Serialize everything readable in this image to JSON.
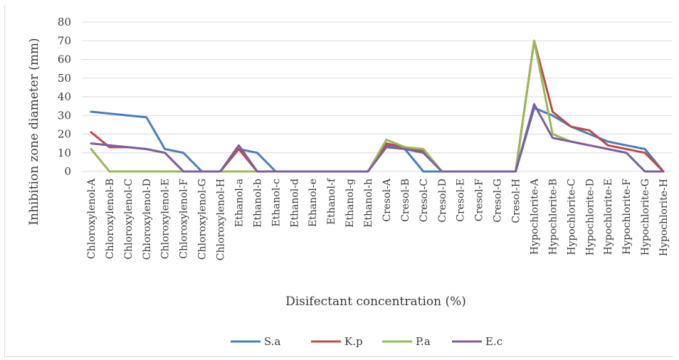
{
  "chart_data": {
    "type": "line",
    "xlabel": "Disifectant concentration (%)",
    "ylabel": "Inhibition zone diameter (mm)",
    "ylim": [
      0,
      80
    ],
    "yticks": [
      0,
      10,
      20,
      30,
      40,
      50,
      60,
      70,
      80
    ],
    "grid": true,
    "legend_position": "bottom",
    "categories": [
      "Chloroxylenol-A",
      "Chloroxylenol-B",
      "Chloroxylenol-C",
      "Chloroxylenol-D",
      "Chloroxylenol-E",
      "Chloroxylenol-F",
      "Chloroxylenol-G",
      "Chloroxylenol-H",
      "Ethanol-a",
      "Ethanol-b",
      "Ethanol-c",
      "Ethanol-d",
      "Ethanol-e",
      "Ethanol-f",
      "Ethanol-g",
      "Ethanol-h",
      "Cresol-A",
      "Cresol-B",
      "Cresol-C",
      "Cresol-D",
      "Cresol-E",
      "Cresol-F",
      "Cresol-G",
      "Cresol-H",
      "Hypochlorite-A",
      "Hypochlorite-B",
      "Hypochlorite-C",
      "Hypochlorite-D",
      "Hypochlorite-E",
      "Hypochlorite-F",
      "Hypochlorite-G",
      "Hypochlorite-H"
    ],
    "series": [
      {
        "name": "S.a",
        "color": "#4a7ebb",
        "values": [
          32,
          31,
          30,
          29,
          12,
          10,
          0,
          0,
          12,
          10,
          0,
          0,
          0,
          0,
          0,
          0,
          14,
          12,
          0,
          0,
          0,
          0,
          0,
          0,
          34,
          30,
          24,
          20,
          16,
          14,
          12,
          0
        ]
      },
      {
        "name": "K.p",
        "color": "#be4b48",
        "values": [
          21,
          13,
          13,
          12,
          10,
          0,
          0,
          0,
          12,
          0,
          0,
          0,
          0,
          0,
          0,
          0,
          15,
          13,
          11,
          0,
          0,
          0,
          0,
          0,
          70,
          32,
          24,
          22,
          14,
          12,
          10,
          0
        ]
      },
      {
        "name": "P.a",
        "color": "#98b954",
        "values": [
          12,
          0,
          0,
          0,
          0,
          0,
          0,
          0,
          0,
          0,
          0,
          0,
          0,
          0,
          0,
          0,
          17,
          13,
          12,
          0,
          0,
          0,
          0,
          0,
          70,
          20,
          16,
          14,
          12,
          10,
          0,
          0
        ]
      },
      {
        "name": "E.c",
        "color": "#7d5fa0",
        "values": [
          15,
          14,
          13,
          12,
          10,
          0,
          0,
          0,
          14,
          0,
          0,
          0,
          0,
          0,
          0,
          0,
          13,
          12,
          10,
          0,
          0,
          0,
          0,
          0,
          36,
          18,
          16,
          14,
          12,
          10,
          0,
          0
        ]
      }
    ]
  }
}
